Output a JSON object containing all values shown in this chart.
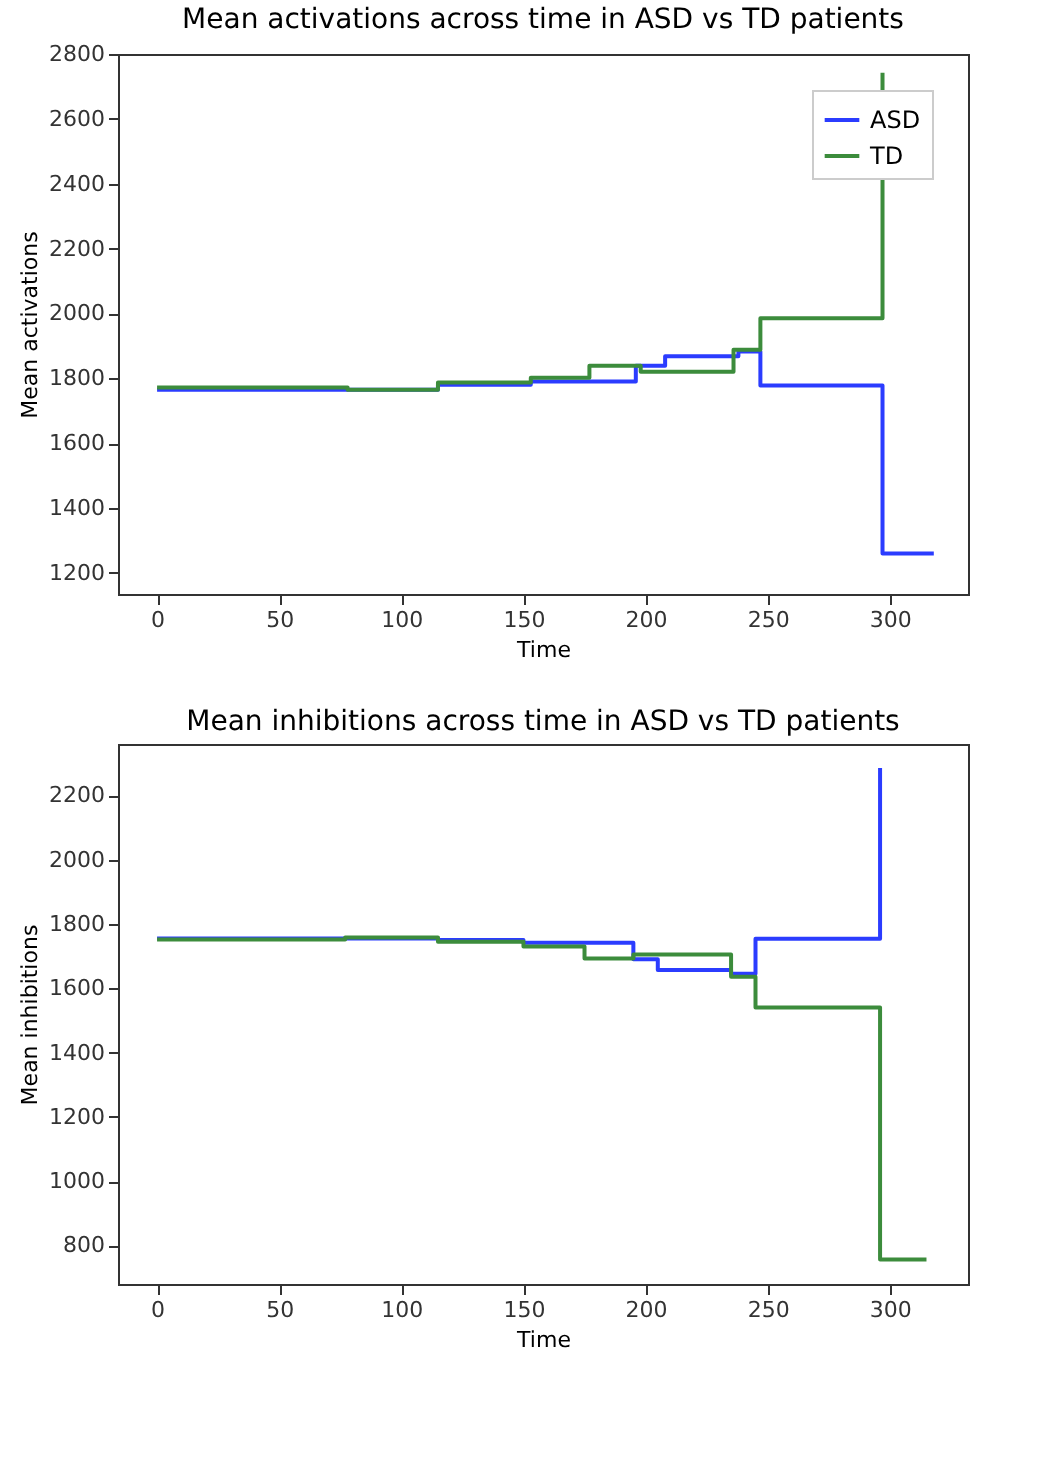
{
  "chart_data": [
    {
      "type": "step",
      "title": "Mean activations across time in ASD vs TD patients",
      "xlabel": "Time",
      "ylabel": "Mean activations",
      "xlim": [
        -16,
        332
      ],
      "xticks": [
        0,
        50,
        100,
        150,
        200,
        250,
        300
      ],
      "ylim": [
        1135,
        2800
      ],
      "yticks": [
        1200,
        1400,
        1600,
        1800,
        2000,
        2200,
        2400,
        2600,
        2800
      ],
      "grid": false,
      "legend": "top right",
      "series": [
        {
          "name": "ASD",
          "color": "#2b3cff",
          "x": [
            0,
            115,
            153,
            196,
            208,
            238,
            247,
            297,
            318
          ],
          "values": [
            1765,
            1780,
            1790,
            1839,
            1868,
            1883,
            1778,
            1260,
            1260
          ]
        },
        {
          "name": "TD",
          "color": "#3c8c3c",
          "x": [
            0,
            78,
            115,
            153,
            177,
            198,
            236,
            247,
            297
          ],
          "values": [
            1772,
            1765,
            1787,
            1802,
            1839,
            1820,
            1888,
            1985,
            2742
          ]
        }
      ]
    },
    {
      "type": "step",
      "title": "Mean inhibitions across time in ASD vs TD patients",
      "xlabel": "Time",
      "ylabel": "Mean inhibitions",
      "xlim": [
        -16,
        332
      ],
      "xticks": [
        0,
        50,
        100,
        150,
        200,
        250,
        300
      ],
      "ylim": [
        680,
        2360
      ],
      "yticks": [
        800,
        1000,
        1200,
        1400,
        1600,
        1800,
        2000,
        2200
      ],
      "grid": false,
      "legend": "top right",
      "series": [
        {
          "name": "ASD",
          "color": "#2b3cff",
          "x": [
            0,
            115,
            150,
            195,
            205,
            235,
            245,
            296
          ],
          "values": [
            1755,
            1750,
            1742,
            1690,
            1657,
            1645,
            1754,
            2285
          ]
        },
        {
          "name": "TD",
          "color": "#3c8c3c",
          "x": [
            0,
            77,
            115,
            150,
            175,
            195,
            235,
            245,
            296,
            315
          ],
          "values": [
            1752,
            1758,
            1745,
            1730,
            1693,
            1705,
            1636,
            1540,
            756,
            756
          ]
        }
      ]
    }
  ]
}
